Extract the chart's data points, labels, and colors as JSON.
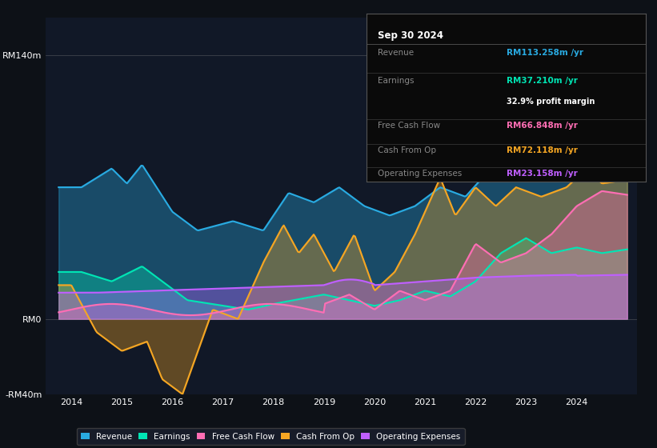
{
  "background_color": "#0d1117",
  "chart_bg_color": "#111827",
  "ylim": [
    -40,
    160
  ],
  "xlim": [
    2013.5,
    2025.2
  ],
  "yticks": [
    -40,
    0,
    140
  ],
  "ytick_labels": [
    "-RM40m",
    "RM0",
    "RM140m"
  ],
  "xticks": [
    2014,
    2015,
    2016,
    2017,
    2018,
    2019,
    2020,
    2021,
    2022,
    2023,
    2024
  ],
  "colors": {
    "revenue": "#29abe2",
    "earnings": "#00e5b4",
    "free_cash_flow": "#ff6eb4",
    "cash_from_op": "#f5a623",
    "operating_expenses": "#bf5fff"
  },
  "info_box": {
    "date": "Sep 30 2024",
    "revenue_label": "Revenue",
    "revenue_value": "RM113.258m /yr",
    "earnings_label": "Earnings",
    "earnings_value": "RM37.210m /yr",
    "margin_value": "32.9% profit margin",
    "fcf_label": "Free Cash Flow",
    "fcf_value": "RM66.848m /yr",
    "cfop_label": "Cash From Op",
    "cfop_value": "RM72.118m /yr",
    "opex_label": "Operating Expenses",
    "opex_value": "RM23.158m /yr"
  },
  "legend": [
    {
      "label": "Revenue",
      "color": "#29abe2"
    },
    {
      "label": "Earnings",
      "color": "#00e5b4"
    },
    {
      "label": "Free Cash Flow",
      "color": "#ff6eb4"
    },
    {
      "label": "Cash From Op",
      "color": "#f5a623"
    },
    {
      "label": "Operating Expenses",
      "color": "#bf5fff"
    }
  ]
}
